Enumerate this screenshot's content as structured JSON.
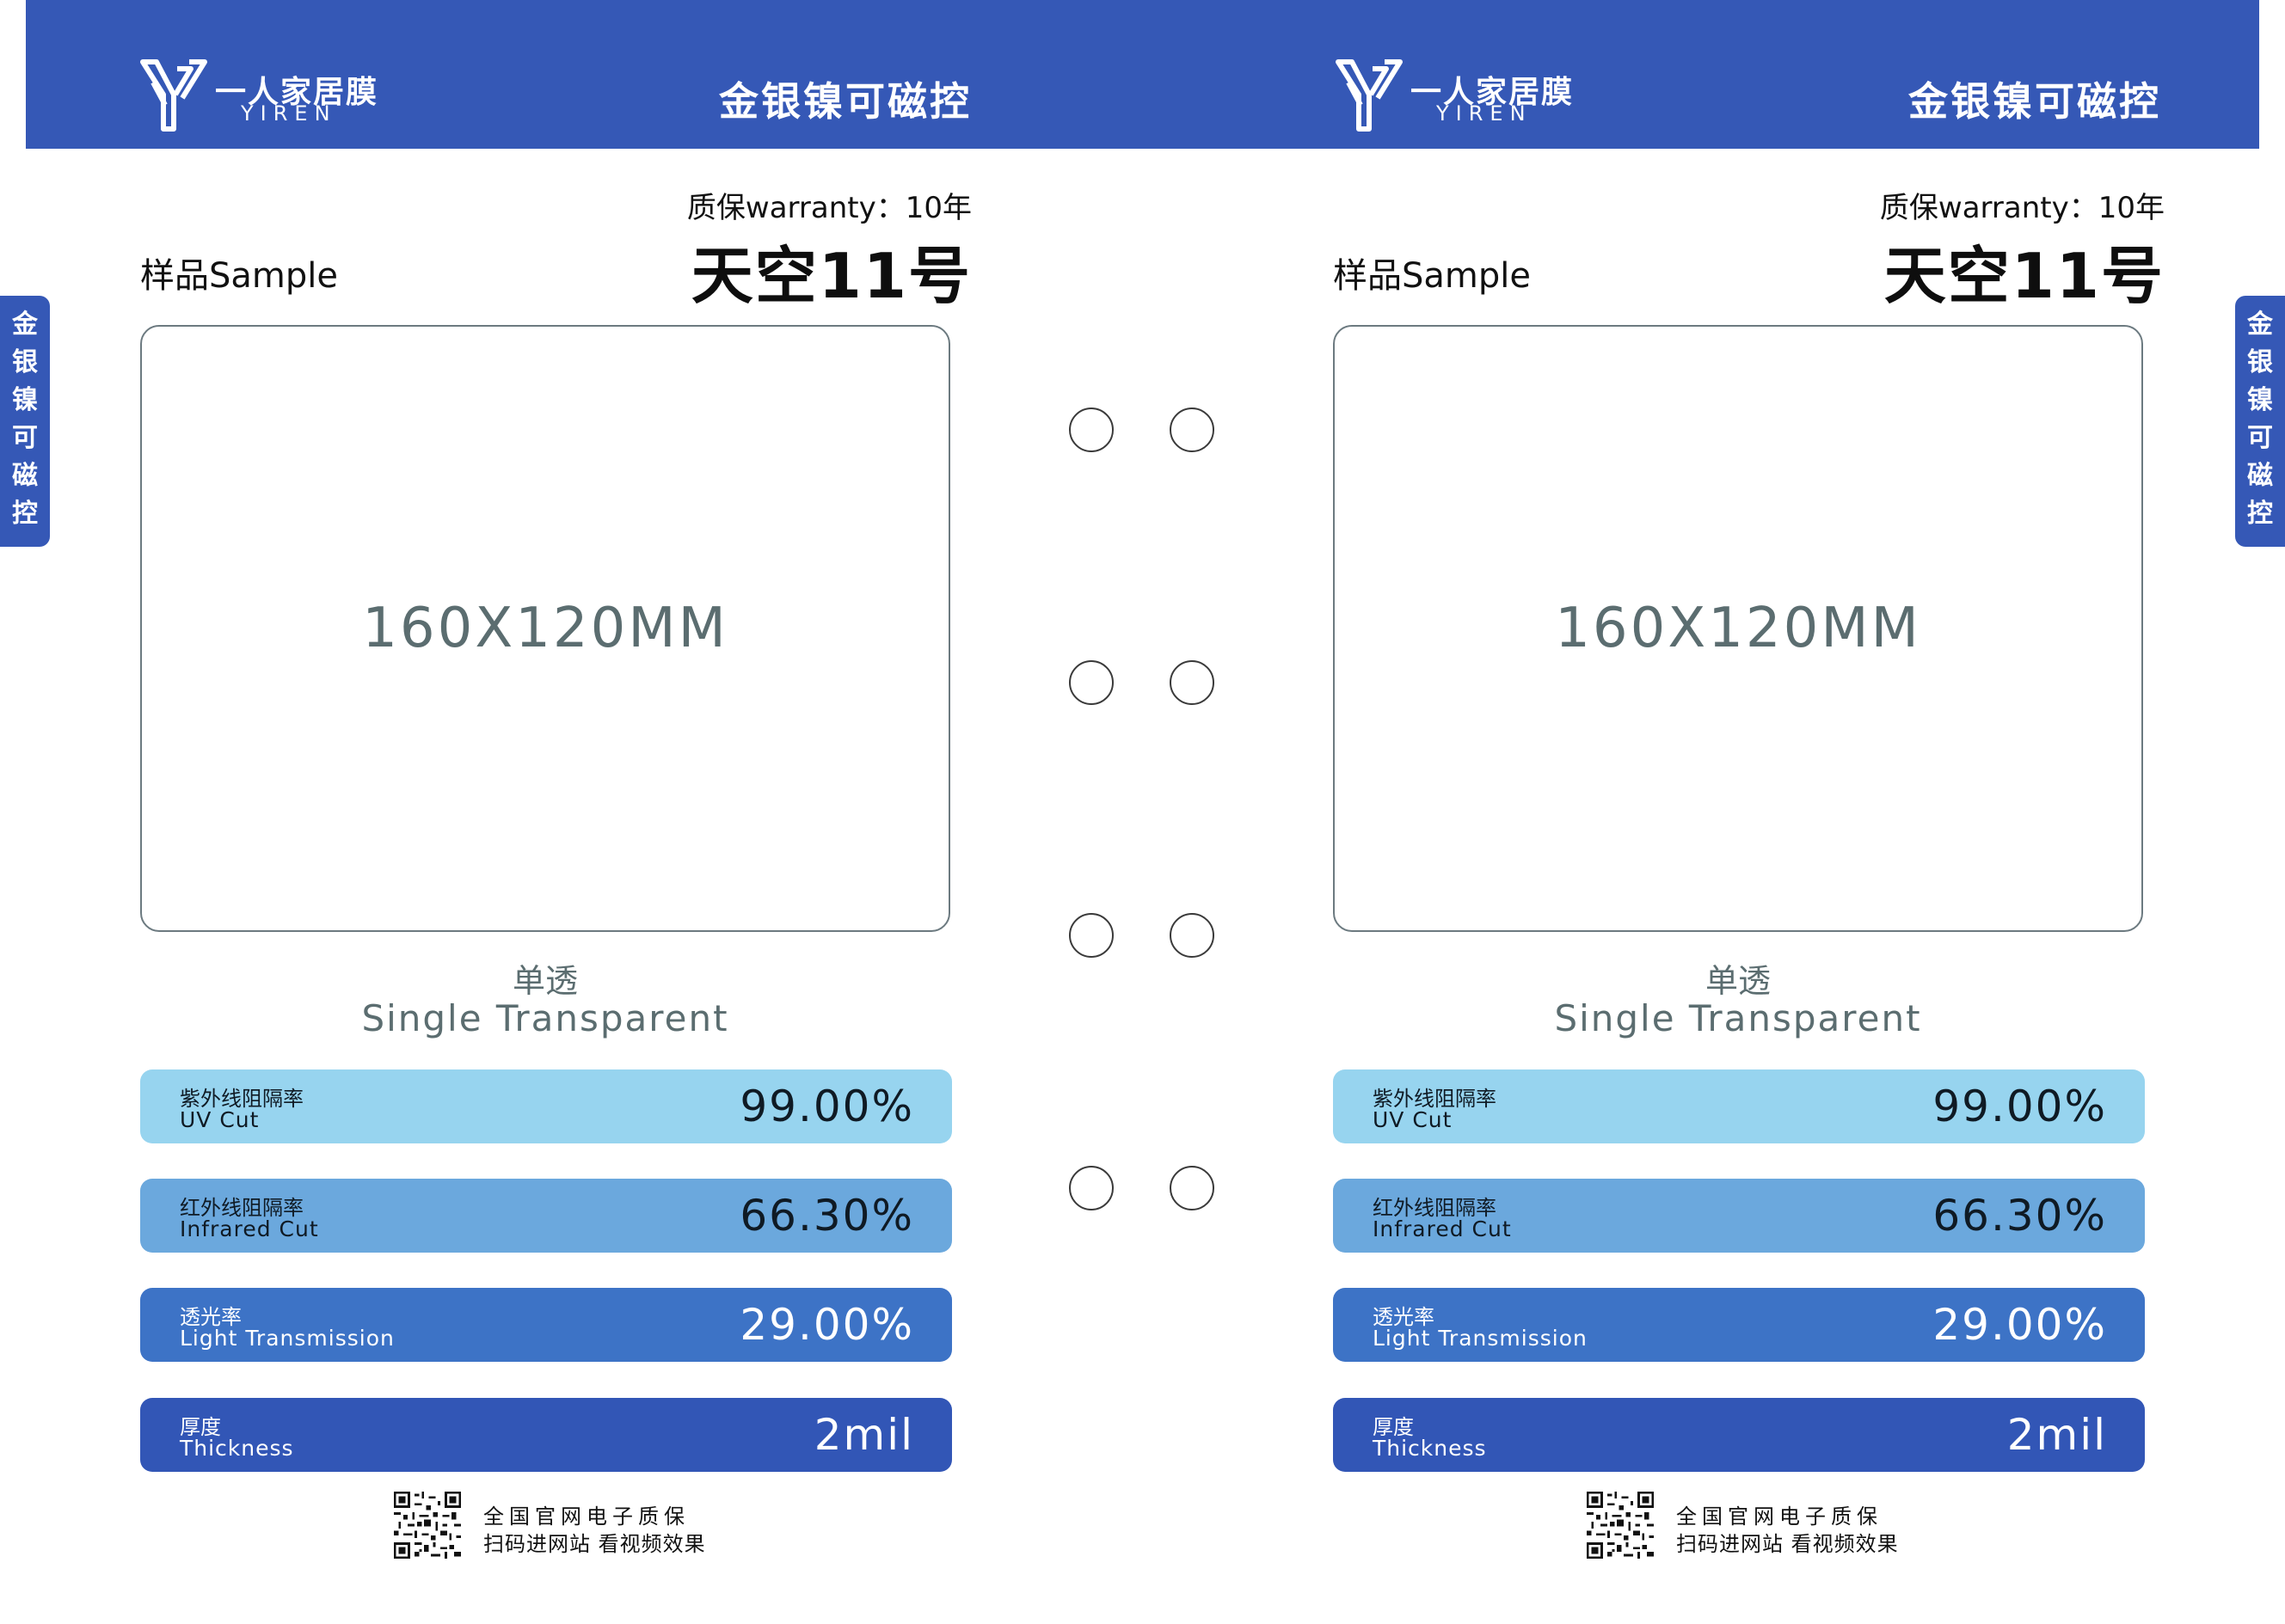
{
  "brand": {
    "name_cn": "一人家居膜",
    "name_en": "YIREN"
  },
  "product": {
    "series": "金银镍可磁控",
    "warranty": "质保warranty：10年",
    "sample_label": "样品Sample",
    "name": "天空11号",
    "sample_size": "160X120MM",
    "type_cn": "单透",
    "type_en": "Single Transparent"
  },
  "stats": {
    "uv": {
      "label_cn": "紫外线阻隔率",
      "label_en": "UV Cut",
      "value": "99.00%",
      "color": "#97d4ef"
    },
    "ir": {
      "label_cn": "红外线阻隔率",
      "label_en": "Infrared Cut",
      "value": "66.30%",
      "color": "#6ba8dd"
    },
    "lt": {
      "label_cn": "透光率",
      "label_en": "Light Transmission",
      "value": "29.00%",
      "color": "#3d73c6"
    },
    "th": {
      "label_cn": "厚度",
      "label_en": "Thickness",
      "value": "2mil",
      "color": "#3256b6"
    }
  },
  "footer": {
    "line1": "全国官网电子质保",
    "line2": "扫码进网站 看视频效果"
  },
  "side_tab": [
    "金",
    "银",
    "镍",
    "可",
    "磁",
    "控"
  ],
  "colors": {
    "header": "#3558b6",
    "text_gray": "#5b6d70"
  },
  "icons": {
    "logo": "yiren-logo-icon",
    "qr": "qr-code-icon",
    "hole": "binding-hole-icon"
  }
}
